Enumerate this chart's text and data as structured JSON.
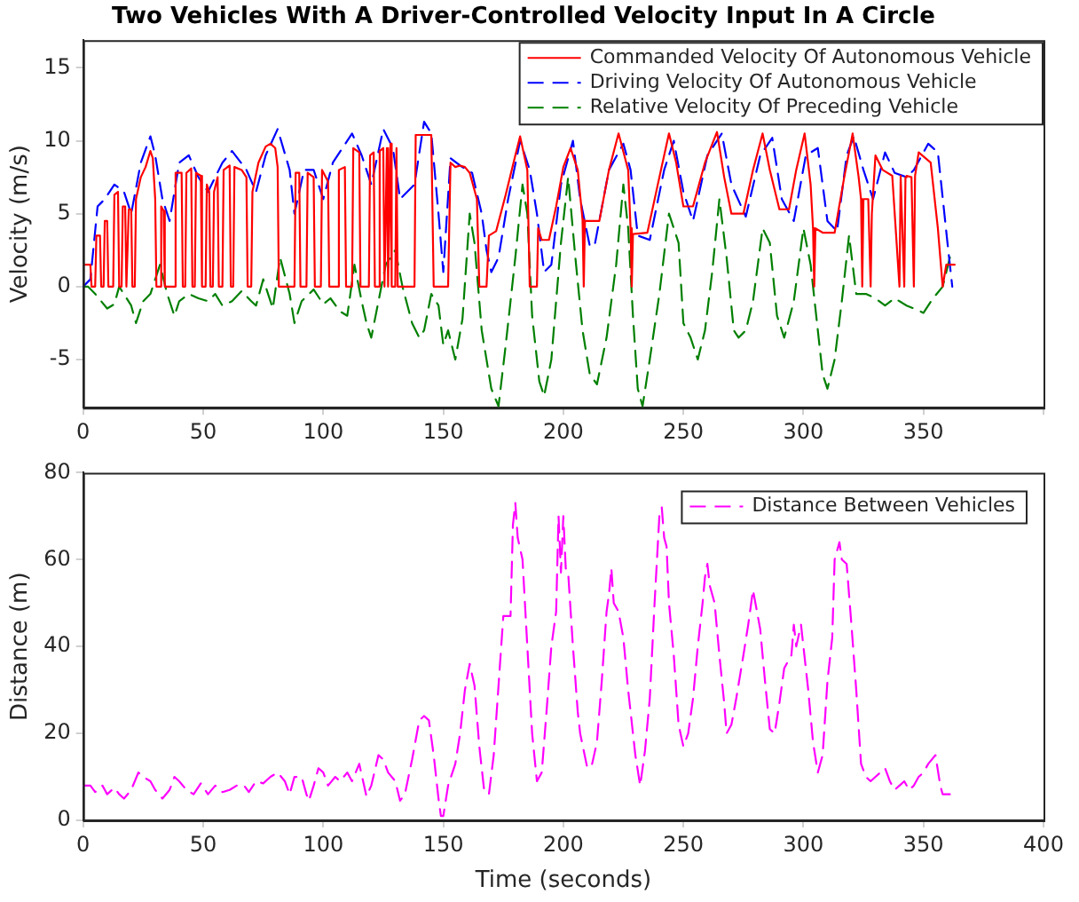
{
  "chart_data": [
    {
      "type": "line",
      "title": "Two Vehicles With A Driver-Controlled Velocity Input In A Circle",
      "ylabel": "Velocity (m/s)",
      "xlim": [
        0,
        400
      ],
      "xticks": [
        0,
        50,
        100,
        150,
        200,
        250,
        300,
        350,
        {
          "value": 400,
          "label": null
        }
      ],
      "ylim": [
        -8.3,
        16.9
      ],
      "yticks": [
        -5,
        0,
        5,
        10,
        15
      ],
      "grid": false,
      "legend": "top right",
      "marker": "none",
      "series": [
        {
          "name": "Commanded Velocity Of Autonomous Vehicle",
          "color": "#ff0000",
          "line_style": "solid",
          "x": [
            0,
            3,
            3.5,
            5,
            5.5,
            7,
            7.5,
            8.5,
            9,
            10,
            10.5,
            12.5,
            13,
            14.5,
            15,
            16,
            16.5,
            17.5,
            18,
            18.5,
            19,
            20,
            20.5,
            21.5,
            22,
            24,
            26,
            28,
            29,
            30,
            30.5,
            32,
            32.5,
            33.5,
            34,
            38,
            38.5,
            41,
            41.5,
            42.5,
            43,
            45,
            45.5,
            46.5,
            47,
            49,
            49.5,
            51,
            51.5,
            52.5,
            53,
            54,
            54.5,
            56,
            56.5,
            58,
            58.5,
            61,
            61.5,
            62.5,
            63,
            66,
            68,
            68.5,
            70,
            70.5,
            73,
            76,
            78,
            80,
            81,
            81.5,
            88,
            88.5,
            90,
            90.5,
            93,
            93.5,
            96,
            96.5,
            99,
            99.5,
            102,
            102.5,
            106,
            106.5,
            109,
            109.5,
            112,
            112.5,
            115,
            115.5,
            119,
            119.5,
            121,
            121.5,
            123,
            123.5,
            125,
            125.5,
            126.5,
            127,
            128,
            128.5,
            130,
            130.5,
            131,
            138,
            138.5,
            145,
            146,
            152,
            153,
            155,
            157,
            159,
            161,
            164,
            165,
            168,
            169,
            172,
            176,
            180,
            182,
            185,
            186,
            189,
            189.5,
            191,
            194,
            197,
            200,
            203,
            206,
            208,
            208.5,
            209,
            215,
            219,
            223,
            227,
            228,
            228.5,
            229,
            235,
            240,
            244,
            247,
            250,
            254,
            259,
            264,
            267,
            270,
            275,
            279,
            283,
            286,
            290,
            294,
            297,
            300.5,
            303,
            304,
            304.5,
            305,
            308,
            313,
            317,
            320.5,
            323,
            324,
            324.5,
            325,
            327,
            328,
            328.5,
            330,
            333,
            337,
            340,
            340.5,
            342,
            342.5,
            343,
            345,
            346,
            346.5,
            348,
            353,
            356,
            358,
            359.5,
            363
          ],
          "values": [
            1.5,
            1.5,
            0,
            0,
            3.5,
            3.5,
            0,
            0,
            4.5,
            4.5,
            0,
            0,
            6.3,
            6.5,
            0,
            0,
            5.5,
            5.5,
            0,
            0,
            5.3,
            5.3,
            0,
            0,
            6,
            7.5,
            8.2,
            9.3,
            8.8,
            6,
            0,
            0,
            5.5,
            5.2,
            0,
            0,
            7.8,
            7.8,
            0,
            0,
            7.8,
            8.1,
            0,
            0,
            7.8,
            7.6,
            0,
            0,
            7,
            6.5,
            0,
            0,
            6.5,
            7.5,
            0,
            0,
            8,
            8.3,
            0,
            0,
            8.2,
            8,
            7.5,
            0,
            0,
            6.5,
            8.5,
            9.6,
            9.8,
            9.5,
            8.2,
            0,
            0,
            7.8,
            7.8,
            0,
            0,
            7.8,
            7.5,
            0,
            0,
            8,
            7.2,
            0,
            0,
            8,
            8.2,
            0,
            0,
            9.5,
            9.2,
            0,
            0,
            9,
            9.2,
            0,
            0,
            9.3,
            9.5,
            0,
            9.5,
            0,
            9.8,
            0,
            0,
            9.5,
            0,
            0,
            10.4,
            10.4,
            0,
            0,
            8.5,
            8.2,
            8.3,
            8.2,
            7.8,
            6,
            0,
            0,
            3.5,
            3.8,
            6.3,
            9,
            10.3,
            8,
            0,
            0,
            4,
            3.2,
            3.2,
            5.5,
            8.2,
            9.5,
            8,
            4.6,
            0,
            4.5,
            4.5,
            8,
            10.5,
            8,
            4,
            0,
            3.6,
            3.7,
            7.5,
            10.5,
            8.5,
            5.5,
            5.5,
            8.5,
            10.6,
            7.5,
            5,
            5,
            8,
            10.5,
            8,
            5.3,
            5.3,
            8,
            10.5,
            7,
            4,
            0,
            4,
            3.7,
            3.7,
            7.5,
            10.5,
            7.5,
            6,
            0,
            6,
            6,
            0,
            5,
            9,
            8,
            7.6,
            0,
            7.6,
            0,
            7.5,
            7.6,
            7.5,
            0,
            7.6,
            9.2,
            8.5,
            4,
            0,
            1.5,
            1.5
          ]
        },
        {
          "name": "Driving Velocity Of Autonomous Vehicle",
          "color": "#0000ff",
          "line_style": "dashed",
          "x": [
            0,
            3,
            6,
            9,
            13,
            17,
            20,
            24,
            28,
            30,
            33,
            36,
            40,
            44,
            48,
            52,
            58,
            62,
            68,
            72,
            76,
            81,
            86,
            88,
            92,
            96,
            100,
            104,
            108,
            112,
            116,
            120,
            125,
            129,
            132,
            138,
            142,
            145,
            148,
            150,
            153,
            157,
            162,
            166,
            168,
            170,
            173,
            177,
            182,
            186,
            189,
            192,
            195,
            199,
            204,
            207,
            211,
            213,
            219,
            225,
            228,
            231,
            236,
            242,
            246,
            250,
            254,
            260,
            266,
            270,
            276,
            282,
            287,
            291,
            296,
            301,
            306,
            310,
            314,
            318,
            321,
            325,
            329,
            334,
            338,
            343,
            346,
            352,
            356,
            360,
            362
          ],
          "values": [
            0,
            0.5,
            5.5,
            6,
            7,
            6.5,
            5,
            8.5,
            10.3,
            9,
            6,
            4.5,
            8.5,
            9,
            7.5,
            6.5,
            8.5,
            9.3,
            8,
            6.5,
            9,
            10.8,
            8,
            5,
            8,
            8,
            6,
            8.5,
            9.5,
            10.5,
            9,
            7,
            10.8,
            9.5,
            6,
            7,
            11.3,
            10.5,
            5,
            1,
            8.8,
            8.3,
            7.8,
            5,
            2.5,
            1,
            2,
            6,
            10,
            8,
            5,
            1,
            1.5,
            7,
            10,
            6,
            2.8,
            2.8,
            8,
            9.8,
            8,
            3.5,
            3.2,
            8,
            10,
            6.5,
            4.5,
            9,
            10.5,
            7,
            4.8,
            9,
            10.2,
            6,
            4.5,
            9,
            9.5,
            4.5,
            3.8,
            9,
            10.3,
            8,
            6,
            9.2,
            7.8,
            7.5,
            8,
            9.8,
            9.2,
            3,
            0
          ]
        },
        {
          "name": "Relative Velocity Of Preceding Vehicle",
          "color": "#007f00",
          "line_style": "dashed",
          "x": [
            0,
            2,
            5,
            10,
            13,
            15,
            20,
            22,
            25,
            28,
            32,
            35,
            38,
            40,
            44,
            48,
            52,
            55,
            58,
            62,
            66,
            70,
            72,
            75,
            79,
            82,
            86,
            88,
            91,
            96,
            100,
            103,
            107,
            110,
            113,
            116,
            118,
            120,
            123,
            126,
            130,
            133,
            137,
            140,
            142,
            145,
            148,
            150,
            152,
            155,
            158,
            161,
            163,
            166,
            170,
            173,
            176,
            178,
            180,
            183,
            185,
            187,
            190,
            192,
            195,
            197,
            199,
            202,
            205,
            208,
            211,
            214,
            218,
            222,
            225,
            227,
            229,
            231,
            233,
            236,
            240,
            244,
            248,
            250,
            253,
            256,
            259,
            262,
            265,
            268,
            271,
            273,
            276,
            279,
            283,
            286,
            289,
            292,
            296,
            300,
            303,
            306,
            308,
            310,
            313,
            316,
            319,
            322,
            326,
            330,
            334,
            338,
            343,
            346,
            350,
            354,
            358,
            361
          ],
          "values": [
            0,
            0,
            -0.5,
            -1.5,
            -1.2,
            0,
            -1.3,
            -2.5,
            -1,
            -0.5,
            1.5,
            -0.5,
            -2,
            -1,
            -0.5,
            -0.8,
            -1,
            -0.5,
            -1.3,
            -1,
            -0.3,
            -1,
            -1.3,
            0.5,
            -1.5,
            2,
            -0.5,
            -2.5,
            -1,
            -0.2,
            -1.2,
            -0.8,
            -1.7,
            -2,
            1.5,
            -1,
            -2.5,
            -3.5,
            -1,
            1.5,
            2.5,
            0,
            -2.5,
            -3.5,
            -3,
            -0.5,
            -1.3,
            -4,
            -3,
            -5,
            -2.2,
            5,
            3,
            -3,
            -7,
            -8.2,
            -4,
            -1,
            2,
            7,
            5,
            -2,
            -6.5,
            -7.5,
            -5,
            -1,
            3,
            7.5,
            2,
            -3,
            -6,
            -6.7,
            -3.5,
            1.5,
            7,
            4,
            -2,
            -7,
            -8.2,
            -5,
            -0.5,
            5,
            3,
            -2.5,
            -3.5,
            -5,
            -3,
            1,
            6,
            2,
            -3,
            -3.5,
            -3,
            -1,
            4,
            3,
            -2,
            -3.5,
            -1,
            4,
            1.5,
            -3,
            -6,
            -7,
            -5,
            -1,
            3.5,
            -0.5,
            -0.5,
            -0.8,
            -1.3,
            -0.8,
            -1.3,
            -1.5,
            -1.8,
            -0.8,
            0,
            2
          ]
        }
      ]
    },
    {
      "type": "line",
      "xlabel": "Time (seconds)",
      "ylabel": "Distance (m)",
      "xlim": [
        0,
        400
      ],
      "xticks": [
        0,
        50,
        100,
        150,
        200,
        250,
        300,
        350,
        400
      ],
      "ylim": [
        0,
        80
      ],
      "yticks": [
        0,
        20,
        40,
        60,
        80
      ],
      "grid": false,
      "legend": "top right",
      "marker": "none",
      "series": [
        {
          "name": "Distance Between Vehicles",
          "color": "#ff00ff",
          "line_style": "dashed",
          "x": [
            0,
            3,
            5,
            8,
            10,
            13,
            15,
            17,
            20,
            23,
            25,
            28,
            30,
            33,
            36,
            38,
            40,
            43,
            46,
            49,
            52,
            55,
            58,
            61,
            64,
            67,
            69,
            72,
            75,
            78,
            81,
            84,
            86,
            88,
            91,
            93,
            94,
            96,
            98,
            100,
            102,
            105,
            107,
            110,
            112,
            115,
            117,
            118,
            120,
            123,
            125,
            127,
            130,
            132,
            134,
            137,
            140,
            142,
            144,
            146,
            148,
            149,
            150,
            152,
            155,
            157,
            159,
            161,
            163,
            165,
            167,
            169,
            171,
            173,
            175,
            178,
            179,
            180,
            181,
            183,
            185,
            187,
            189,
            191,
            193,
            195,
            197,
            198,
            199,
            200,
            201,
            202,
            204,
            206,
            207,
            210,
            212,
            214,
            216,
            218,
            219,
            220,
            221,
            223,
            225,
            227,
            230,
            232,
            234,
            236,
            238,
            240,
            241,
            242,
            243,
            244,
            246,
            248,
            250,
            252,
            254,
            256,
            258,
            259,
            260,
            261,
            263,
            265,
            267,
            268,
            270,
            272,
            275,
            277,
            279,
            280,
            282,
            284,
            286,
            288,
            290,
            292,
            295,
            296,
            297,
            299,
            300,
            302,
            304,
            306,
            308,
            310,
            312,
            313,
            315,
            316,
            318,
            320,
            322,
            324,
            326,
            328,
            330,
            332,
            334,
            336,
            338,
            340,
            342,
            344,
            346,
            348,
            350,
            352,
            355,
            357,
            358,
            361
          ],
          "values": [
            8,
            8,
            6.5,
            8,
            6,
            7.5,
            6,
            5,
            7,
            11,
            10,
            9,
            7,
            5,
            7,
            10,
            9,
            7,
            6,
            8.5,
            6,
            8,
            6.5,
            7,
            8,
            8,
            6.5,
            9,
            8.5,
            10,
            11,
            9,
            6,
            10,
            10,
            6,
            4.5,
            8,
            12,
            11,
            8,
            10,
            9,
            11,
            9,
            13,
            8,
            5.5,
            8,
            15,
            14,
            11,
            9,
            4.5,
            6,
            14,
            23,
            24,
            23,
            15,
            5,
            1,
            1,
            8,
            13,
            20,
            30,
            36,
            31,
            17,
            7,
            6,
            15,
            31,
            47,
            47,
            68,
            73,
            65,
            60,
            40,
            20,
            9,
            11,
            25,
            40,
            48,
            70,
            57,
            70,
            58,
            57,
            40,
            25,
            20,
            12,
            13,
            18,
            32,
            48,
            52,
            58,
            50,
            48,
            42,
            30,
            15,
            8,
            16,
            28,
            50,
            70,
            72,
            65,
            63,
            50,
            38,
            22,
            17,
            20,
            28,
            40,
            50,
            56,
            59,
            54,
            50,
            38,
            27,
            20,
            22,
            28,
            38,
            45,
            53,
            50,
            44,
            32,
            21,
            20,
            27,
            35,
            38,
            45,
            40,
            45,
            40,
            30,
            18,
            11,
            15,
            32,
            42,
            60,
            64,
            60,
            59,
            45,
            30,
            13,
            10,
            9,
            10,
            11,
            12,
            9,
            7,
            8,
            9,
            7,
            8,
            10,
            11,
            13,
            15,
            8,
            6,
            6
          ]
        }
      ]
    }
  ]
}
